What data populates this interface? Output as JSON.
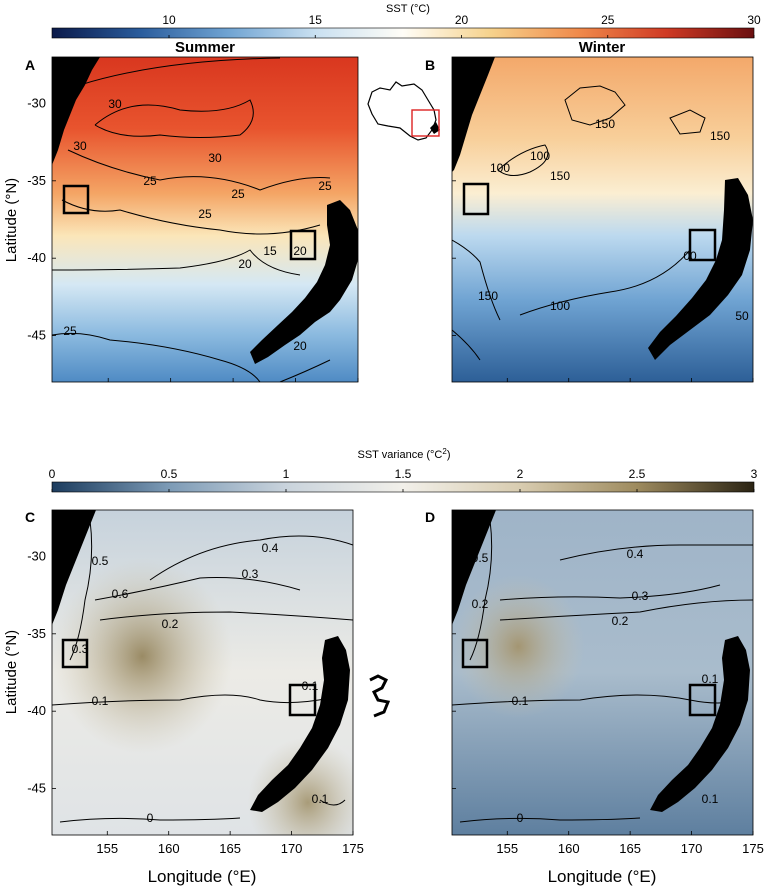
{
  "colorbar_top": {
    "label": "SST (°C)",
    "ticks": [
      "10",
      "15",
      "20",
      "25",
      "30"
    ],
    "tick_values": [
      10,
      15,
      20,
      25,
      30
    ],
    "range": [
      6,
      30
    ],
    "colors": [
      "#0b1a4a",
      "#2a5c9c",
      "#6fa3d2",
      "#c9e0f1",
      "#fffdf7",
      "#f6d28c",
      "#f08a4b",
      "#cf3a24",
      "#6a0f10"
    ]
  },
  "colorbar_bottom": {
    "label": "SST variance (°C",
    "label_sup": "2",
    "label_end": ")",
    "ticks": [
      "0",
      "0.5",
      "1",
      "1.5",
      "2",
      "2.5",
      "3"
    ],
    "tick_values": [
      0,
      0.5,
      1,
      1.5,
      2,
      2.5,
      3
    ],
    "range": [
      0,
      3
    ],
    "colors": [
      "#1c3c5e",
      "#7d9bb6",
      "#c9d3dc",
      "#f2f0ea",
      "#d8ccb0",
      "#9e8b5f",
      "#2a2313"
    ]
  },
  "panels": {
    "A": {
      "letter": "A",
      "title": "Summer"
    },
    "B": {
      "letter": "B",
      "title": "Winter"
    },
    "C": {
      "letter": "C",
      "title": ""
    },
    "D": {
      "letter": "D",
      "title": ""
    }
  },
  "axes": {
    "ylabel": "Latitude (°N)",
    "xlabel": "Longitude (°E)",
    "yticks": [
      "-30",
      "-35",
      "-40",
      "-45"
    ],
    "xticks": [
      "155",
      "160",
      "165",
      "170",
      "175"
    ]
  },
  "chart_data": [
    {
      "type": "heatmap",
      "panel": "A",
      "title": "Summer",
      "variable": "SST",
      "units": "°C",
      "xlim": [
        150.5,
        175
      ],
      "ylim": [
        -48,
        -27
      ],
      "contour_labels": [
        "30",
        "30",
        "25",
        "25",
        "25",
        "20",
        "20",
        "15",
        "25",
        "20",
        "30",
        "25"
      ],
      "boxes": [
        {
          "lon": [
            151,
            153
          ],
          "lat": [
            -37.2,
            -34.8
          ]
        },
        {
          "lon": [
            169.3,
            171.2
          ],
          "lat": [
            -39.5,
            -37.5
          ]
        }
      ]
    },
    {
      "type": "heatmap",
      "panel": "B",
      "title": "Winter",
      "variable": "SST",
      "units": "°C",
      "xlim": [
        150.5,
        175
      ],
      "ylim": [
        -48,
        -27
      ],
      "contour_labels": [
        "150",
        "150",
        "100",
        "100",
        "00",
        "150",
        "100",
        "150",
        "50"
      ],
      "boxes": [
        {
          "lon": [
            151,
            153
          ],
          "lat": [
            -37.2,
            -34.8
          ]
        },
        {
          "lon": [
            169.3,
            171.2
          ],
          "lat": [
            -39.5,
            -37.5
          ]
        }
      ]
    },
    {
      "type": "heatmap",
      "panel": "C",
      "variable": "SST variance",
      "units": "°C²",
      "xlim": [
        150.5,
        175
      ],
      "ylim": [
        -48,
        -27
      ],
      "contour_labels": [
        "0.4",
        "0.6",
        "0.3",
        "0.2",
        "0.1",
        "0.3",
        "0",
        "0.1",
        "0.5",
        "0.1"
      ],
      "boxes": [
        {
          "lon": [
            151,
            153
          ],
          "lat": [
            -37.2,
            -34.8
          ]
        },
        {
          "lon": [
            169.3,
            171.2
          ],
          "lat": [
            -39.5,
            -37.5
          ]
        }
      ]
    },
    {
      "type": "heatmap",
      "panel": "D",
      "variable": "SST variance",
      "units": "°C²",
      "xlim": [
        150.5,
        175
      ],
      "ylim": [
        -48,
        -27
      ],
      "contour_labels": [
        "0.5",
        "0.4",
        "0.3",
        "0.2",
        "0.1",
        "0.1",
        "0",
        "0.1",
        "0.2"
      ],
      "boxes": [
        {
          "lon": [
            151,
            153
          ],
          "lat": [
            -37.2,
            -34.8
          ]
        },
        {
          "lon": [
            169.3,
            171.2
          ],
          "lat": [
            -39.5,
            -37.5
          ]
        }
      ]
    }
  ]
}
